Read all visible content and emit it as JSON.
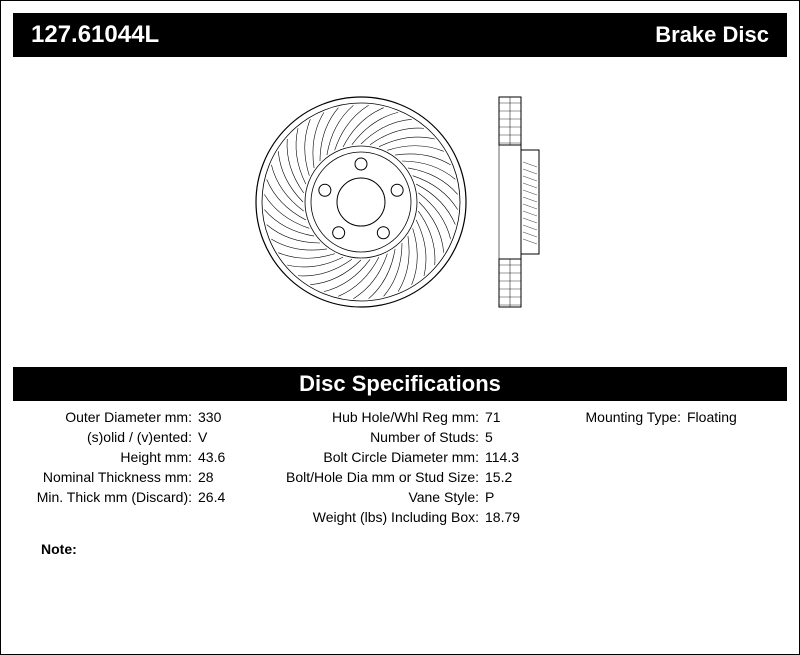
{
  "header": {
    "part_number": "127.61044L",
    "right_title": "Brake Disc"
  },
  "specs_header": "Disc Specifications",
  "col1": [
    {
      "label": "Outer Diameter mm:",
      "value": "330"
    },
    {
      "label": "(s)olid / (v)ented:",
      "value": "V"
    },
    {
      "label": "Height mm:",
      "value": "43.6"
    },
    {
      "label": "Nominal Thickness mm:",
      "value": "28"
    },
    {
      "label": "Min. Thick mm (Discard):",
      "value": "26.4"
    }
  ],
  "col2": [
    {
      "label": "Hub Hole/Whl Reg mm:",
      "value": "71"
    },
    {
      "label": "Number of Studs:",
      "value": "5"
    },
    {
      "label": "Bolt Circle Diameter mm:",
      "value": "114.3"
    },
    {
      "label": "Bolt/Hole Dia mm or Stud Size:",
      "value": "15.2"
    },
    {
      "label": "Vane Style:",
      "value": "P"
    },
    {
      "label": "Weight (lbs) Including Box:",
      "value": "18.79"
    }
  ],
  "col3": [
    {
      "label": "Mounting Type:",
      "value": "Floating"
    }
  ],
  "note_label": "Note:",
  "disc": {
    "outer_radius": 105,
    "hub_radius": 24,
    "stud_count": 5,
    "stud_hole_radius": 6,
    "stud_orbit_radius": 38,
    "slot_count": 40
  },
  "colors": {
    "stroke": "#000000",
    "bg": "#ffffff"
  }
}
